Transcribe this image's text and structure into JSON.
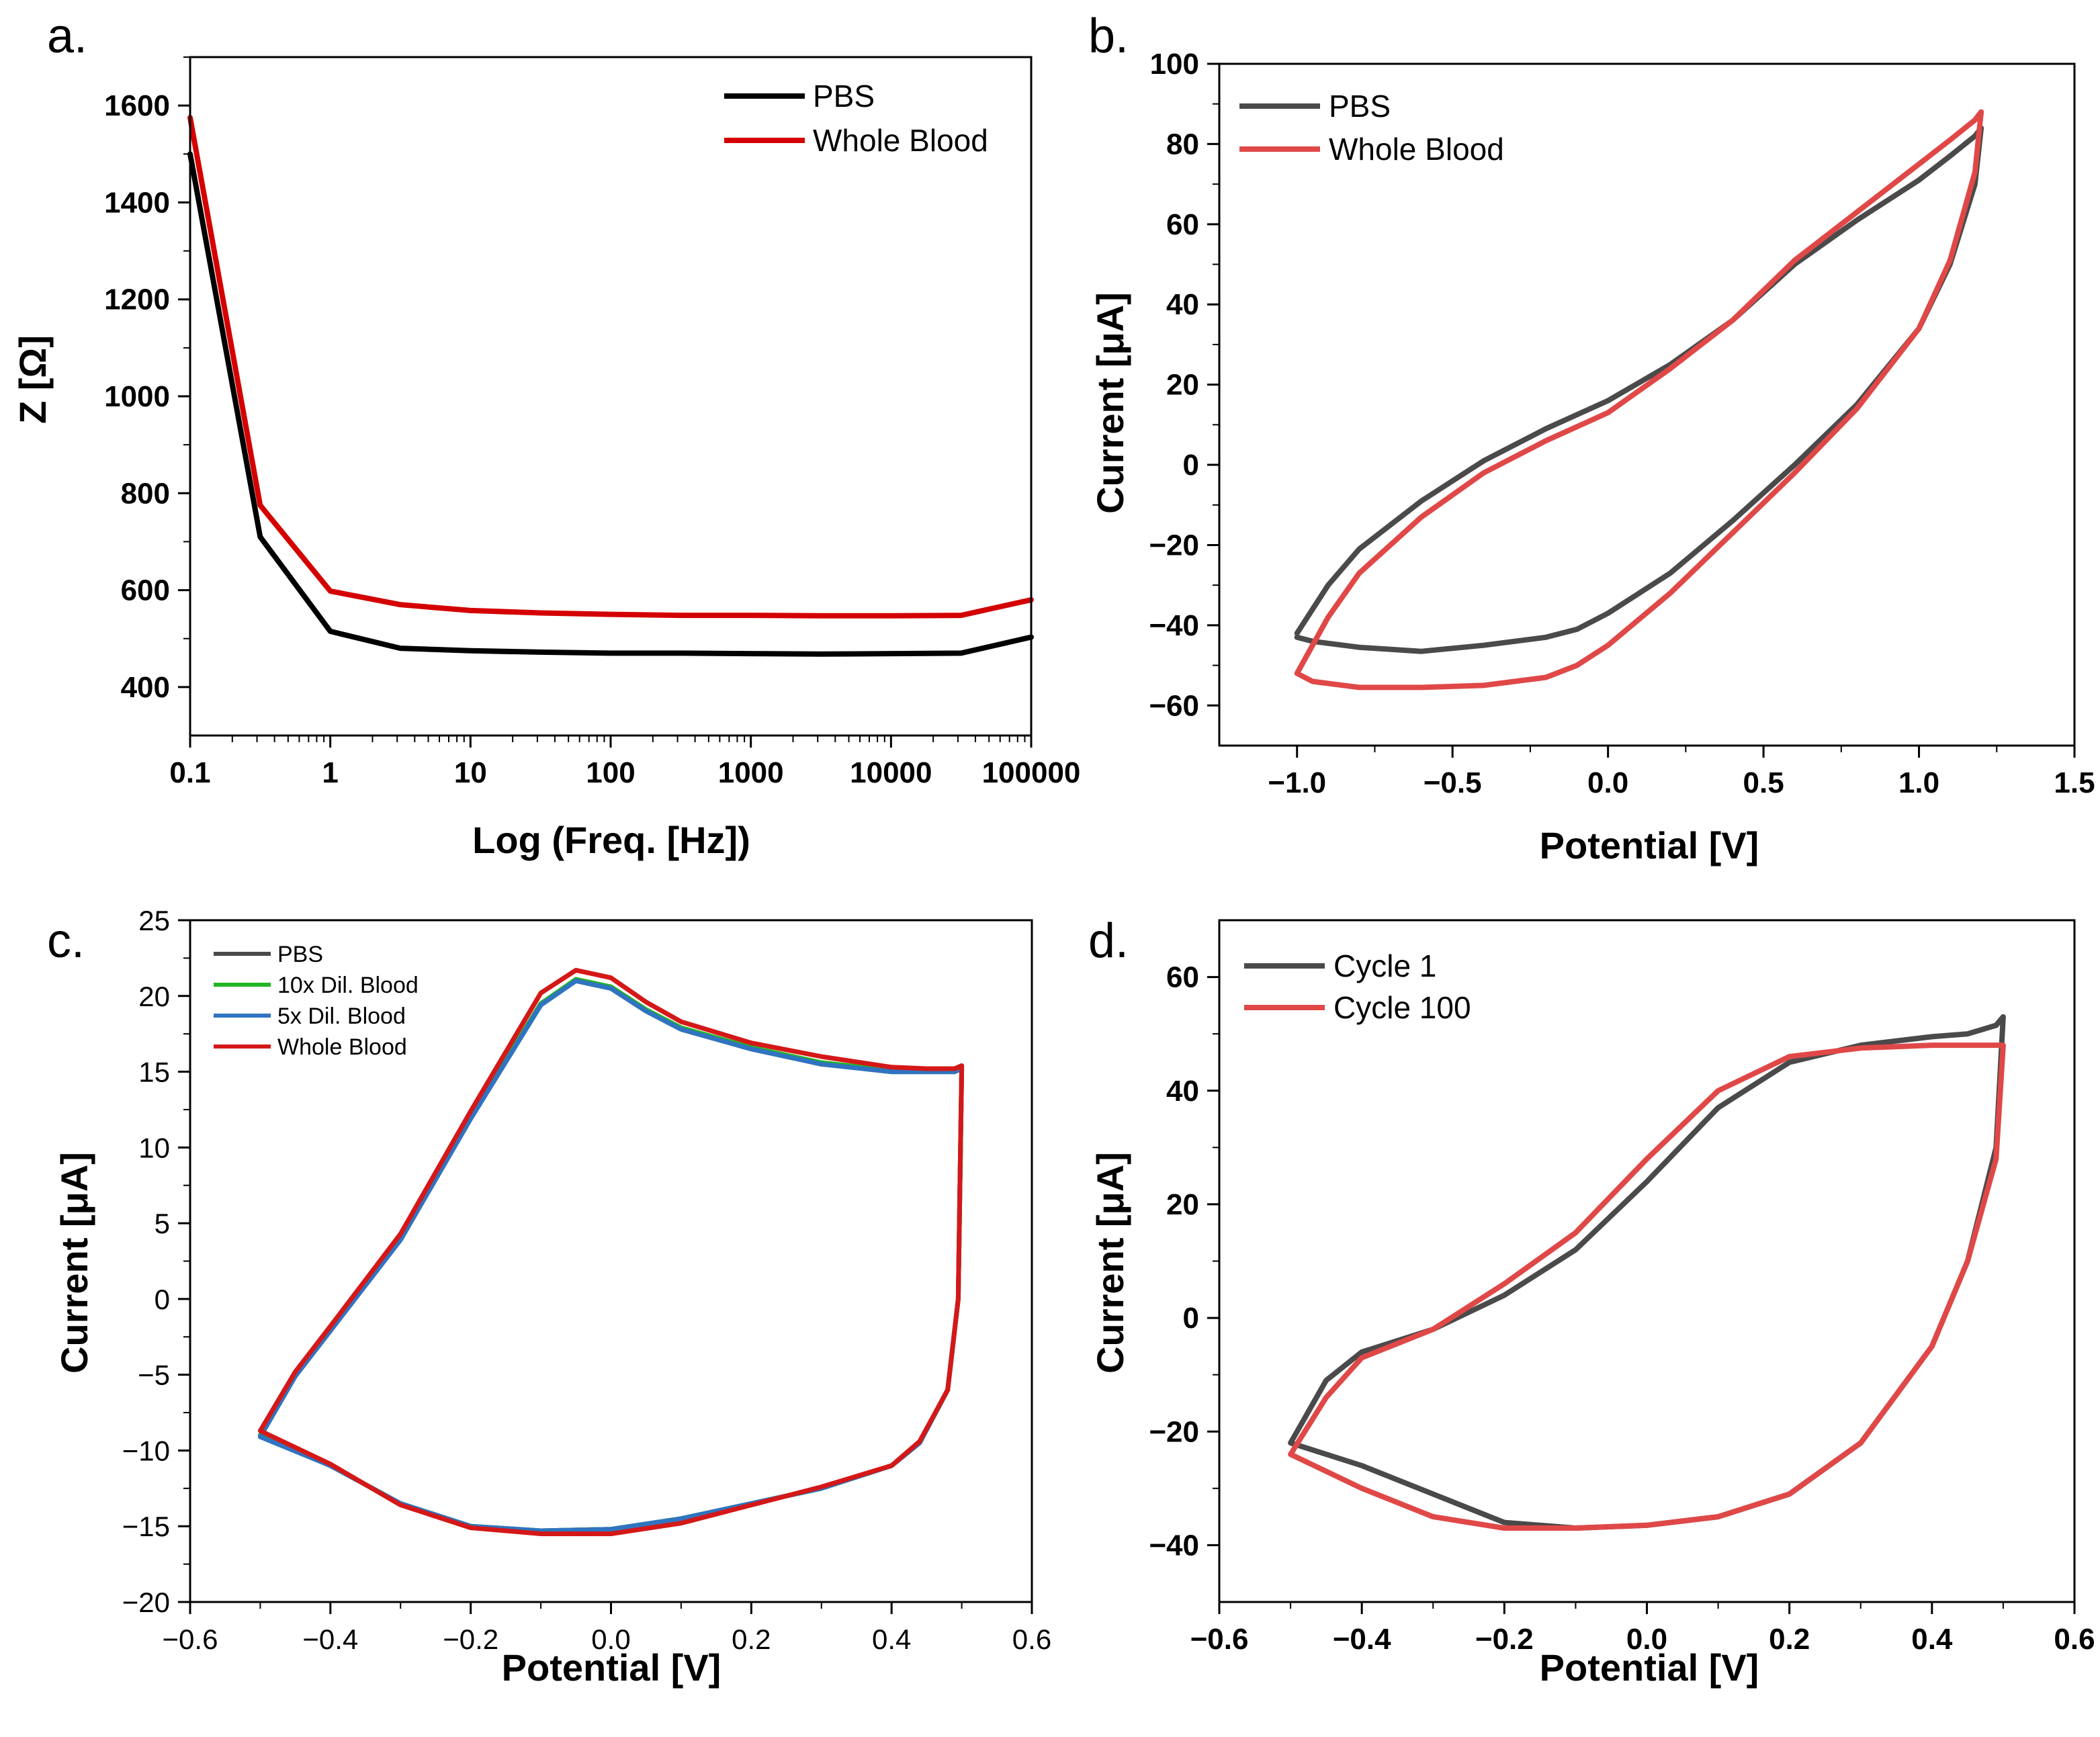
{
  "chart_data": [
    {
      "id": "a",
      "type": "line",
      "panel_label": "a.",
      "title": "",
      "xlabel": "Log (Freq. [Hz])",
      "ylabel": "Z [Ω]",
      "xscale": "log",
      "xlim": [
        0.1,
        100000
      ],
      "ylim": [
        300,
        1700
      ],
      "xticks": [
        0.1,
        1,
        10,
        100,
        1000,
        10000,
        100000
      ],
      "xtick_labels": [
        "0.1",
        "1",
        "10",
        "100",
        "1000",
        "10000",
        "100000"
      ],
      "yticks": [
        400,
        600,
        800,
        1000,
        1200,
        1400,
        1600
      ],
      "ytick_labels": [
        "400",
        "600",
        "800",
        "1000",
        "1200",
        "1400",
        "1600"
      ],
      "legend_position": "top-right",
      "series": [
        {
          "name": "PBS",
          "color": "#000000",
          "x": [
            0.1,
            0.316,
            1,
            3.16,
            10,
            31.6,
            100,
            316,
            1000,
            3162,
            10000,
            31623,
            100000
          ],
          "y": [
            1500,
            710,
            515,
            480,
            475,
            472,
            470,
            470,
            469,
            468,
            469,
            470,
            503
          ]
        },
        {
          "name": "Whole Blood",
          "color": "#d40000",
          "x": [
            0.1,
            0.316,
            1,
            3.16,
            10,
            31.6,
            100,
            316,
            1000,
            3162,
            10000,
            31623,
            100000
          ],
          "y": [
            1575,
            775,
            598,
            570,
            558,
            553,
            550,
            548,
            548,
            547,
            547,
            548,
            580
          ]
        }
      ]
    },
    {
      "id": "b",
      "type": "line",
      "panel_label": "b.",
      "title": "",
      "xlabel": "Potential [V]",
      "ylabel": "Current [μA]",
      "xlim": [
        -1.25,
        1.5
      ],
      "ylim": [
        -70,
        100
      ],
      "xticks": [
        -1.0,
        -0.5,
        0.0,
        0.5,
        1.0,
        1.5
      ],
      "xtick_labels": [
        "−1.0",
        "−0.5",
        "0.0",
        "0.5",
        "1.0",
        "1.5"
      ],
      "yticks": [
        -60,
        -40,
        -20,
        0,
        20,
        40,
        60,
        80,
        100
      ],
      "ytick_labels": [
        "−60",
        "−40",
        "−20",
        "0",
        "20",
        "40",
        "60",
        "80",
        "100"
      ],
      "legend_position": "top-left",
      "series": [
        {
          "name": "PBS",
          "color": "#4a4a4a",
          "x": [
            -1.0,
            -0.9,
            -0.8,
            -0.6,
            -0.4,
            -0.2,
            0.0,
            0.2,
            0.4,
            0.6,
            0.8,
            1.0,
            1.1,
            1.18,
            1.2,
            1.18,
            1.1,
            1.0,
            0.8,
            0.6,
            0.4,
            0.2,
            0.0,
            -0.1,
            -0.2,
            -0.4,
            -0.6,
            -0.8,
            -0.95,
            -1.0
          ],
          "y": [
            -42,
            -30,
            -21,
            -9,
            1,
            9,
            16,
            25,
            36,
            50,
            61,
            71,
            77,
            82,
            84,
            70,
            50,
            34,
            15,
            0,
            -14,
            -27,
            -37,
            -41,
            -43,
            -45,
            -46.5,
            -45.5,
            -44,
            -43
          ]
        },
        {
          "name": "Whole Blood",
          "color": "#e04848",
          "x": [
            -1.0,
            -0.9,
            -0.8,
            -0.6,
            -0.4,
            -0.2,
            0.0,
            0.2,
            0.4,
            0.6,
            0.8,
            1.0,
            1.1,
            1.18,
            1.2,
            1.18,
            1.1,
            1.0,
            0.8,
            0.6,
            0.4,
            0.2,
            0.0,
            -0.1,
            -0.2,
            -0.4,
            -0.6,
            -0.8,
            -0.95,
            -1.0
          ],
          "y": [
            -52,
            -38,
            -27,
            -13,
            -2,
            6,
            13,
            24,
            36,
            51,
            63,
            75,
            81,
            86,
            88,
            73,
            51,
            34,
            14,
            -2,
            -17,
            -32,
            -45,
            -50,
            -53,
            -55,
            -55.5,
            -55.5,
            -54,
            -52
          ]
        }
      ]
    },
    {
      "id": "c",
      "type": "line",
      "panel_label": "c.",
      "title": "",
      "xlabel": "Potential [V]",
      "ylabel": "Current [μA]",
      "xlim": [
        -0.6,
        0.6
      ],
      "ylim": [
        -20,
        25
      ],
      "xticks": [
        -0.6,
        -0.4,
        -0.2,
        0.0,
        0.2,
        0.4,
        0.6
      ],
      "xtick_labels": [
        "−0.6",
        "−0.4",
        "−0.2",
        "0.0",
        "0.2",
        "0.4",
        "0.6"
      ],
      "yticks": [
        -20,
        -15,
        -10,
        -5,
        0,
        5,
        10,
        15,
        20,
        25
      ],
      "ytick_labels": [
        "−20",
        "−15",
        "−10",
        "−5",
        "0",
        "5",
        "10",
        "15",
        "20",
        "25"
      ],
      "legend_position": "top-left",
      "series": [
        {
          "name": "PBS",
          "color": "#4a4a4a",
          "x": [
            -0.5,
            -0.45,
            -0.4,
            -0.3,
            -0.2,
            -0.1,
            -0.05,
            0.0,
            0.05,
            0.1,
            0.2,
            0.3,
            0.4,
            0.45,
            0.49,
            0.5,
            0.495,
            0.48,
            0.44,
            0.4,
            0.3,
            0.2,
            0.1,
            0.0,
            -0.1,
            -0.2,
            -0.3,
            -0.4,
            -0.5
          ],
          "y": [
            -9,
            -5,
            -2,
            4,
            12,
            19.5,
            21,
            20.5,
            19,
            17.8,
            16.5,
            15.5,
            15,
            15,
            15,
            15.2,
            0,
            -6,
            -9.5,
            -11,
            -12.5,
            -13.5,
            -14.5,
            -15.2,
            -15.3,
            -15,
            -13.5,
            -11,
            -9
          ]
        },
        {
          "name": "10x Dil. Blood",
          "color": "#22b522",
          "x": [
            -0.5,
            -0.45,
            -0.4,
            -0.3,
            -0.2,
            -0.1,
            -0.05,
            0.0,
            0.05,
            0.1,
            0.2,
            0.3,
            0.4,
            0.45,
            0.49,
            0.5,
            0.495,
            0.48,
            0.44,
            0.4,
            0.3,
            0.2,
            0.1,
            0.0,
            -0.1,
            -0.2,
            -0.3,
            -0.4,
            -0.5
          ],
          "y": [
            -9,
            -5,
            -2,
            4,
            12,
            19.5,
            21.1,
            20.6,
            19.1,
            17.9,
            16.6,
            15.6,
            15.1,
            15.1,
            15.1,
            15.3,
            0,
            -6,
            -9.5,
            -11,
            -12.5,
            -13.5,
            -14.5,
            -15.2,
            -15.3,
            -15,
            -13.5,
            -11,
            -9
          ]
        },
        {
          "name": "5x Dil. Blood",
          "color": "#2f74c0",
          "x": [
            -0.5,
            -0.45,
            -0.4,
            -0.3,
            -0.2,
            -0.1,
            -0.05,
            0.0,
            0.05,
            0.1,
            0.2,
            0.3,
            0.4,
            0.45,
            0.49,
            0.5,
            0.495,
            0.48,
            0.44,
            0.4,
            0.3,
            0.2,
            0.1,
            0.0,
            -0.1,
            -0.2,
            -0.3,
            -0.4,
            -0.5
          ],
          "y": [
            -9.1,
            -5.1,
            -2.1,
            3.9,
            11.9,
            19.4,
            21,
            20.5,
            19,
            17.8,
            16.5,
            15.5,
            15,
            15,
            15,
            15.2,
            0,
            -6,
            -9.5,
            -11,
            -12.5,
            -13.5,
            -14.5,
            -15.2,
            -15.3,
            -15,
            -13.5,
            -11,
            -9.1
          ]
        },
        {
          "name": "Whole Blood",
          "color": "#d41818",
          "x": [
            -0.5,
            -0.45,
            -0.4,
            -0.3,
            -0.2,
            -0.1,
            -0.05,
            0.0,
            0.05,
            0.1,
            0.2,
            0.3,
            0.4,
            0.45,
            0.49,
            0.5,
            0.495,
            0.48,
            0.44,
            0.4,
            0.3,
            0.2,
            0.1,
            0.0,
            -0.1,
            -0.2,
            -0.3,
            -0.4,
            -0.5
          ],
          "y": [
            -8.7,
            -4.8,
            -1.8,
            4.3,
            12.4,
            20.2,
            21.7,
            21.2,
            19.6,
            18.3,
            16.9,
            16,
            15.3,
            15.2,
            15.2,
            15.4,
            0,
            -6,
            -9.4,
            -11,
            -12.4,
            -13.6,
            -14.8,
            -15.5,
            -15.5,
            -15.1,
            -13.6,
            -10.9,
            -8.7
          ]
        }
      ]
    },
    {
      "id": "d",
      "type": "line",
      "panel_label": "d.",
      "title": "",
      "xlabel": "Potential [V]",
      "ylabel": "Current [μA]",
      "xlim": [
        -0.6,
        0.6
      ],
      "ylim": [
        -50,
        70
      ],
      "xticks": [
        -0.6,
        -0.4,
        -0.2,
        0.0,
        0.2,
        0.4,
        0.6
      ],
      "xtick_labels": [
        "−0.6",
        "−0.4",
        "−0.2",
        "0.0",
        "0.2",
        "0.4",
        "0.6"
      ],
      "yticks": [
        -40,
        -20,
        0,
        20,
        40,
        60
      ],
      "ytick_labels": [
        "−40",
        "−20",
        "0",
        "20",
        "40",
        "60"
      ],
      "legend_position": "top-left",
      "series": [
        {
          "name": "Cycle 1",
          "color": "#4a4a4a",
          "x": [
            -0.5,
            -0.45,
            -0.4,
            -0.3,
            -0.2,
            -0.1,
            0.0,
            0.1,
            0.2,
            0.3,
            0.4,
            0.45,
            0.49,
            0.5,
            0.49,
            0.45,
            0.4,
            0.3,
            0.2,
            0.1,
            0.0,
            -0.1,
            -0.2,
            -0.3,
            -0.4,
            -0.5
          ],
          "y": [
            -22,
            -11,
            -6,
            -2,
            4,
            12,
            24,
            37,
            45,
            48,
            49.5,
            50,
            51.5,
            53,
            30,
            10,
            -5,
            -22,
            -31,
            -35,
            -36.5,
            -37,
            -36,
            -31,
            -26,
            -22
          ]
        },
        {
          "name": "Cycle 100",
          "color": "#e04848",
          "x": [
            -0.5,
            -0.45,
            -0.4,
            -0.3,
            -0.2,
            -0.1,
            0.0,
            0.1,
            0.2,
            0.3,
            0.4,
            0.45,
            0.49,
            0.5,
            0.49,
            0.45,
            0.4,
            0.3,
            0.2,
            0.1,
            0.0,
            -0.1,
            -0.2,
            -0.3,
            -0.4,
            -0.5
          ],
          "y": [
            -24,
            -14,
            -7,
            -2,
            6,
            15,
            28,
            40,
            46,
            47.5,
            48,
            48,
            48,
            48,
            28,
            10,
            -5,
            -22,
            -31,
            -35,
            -36.5,
            -37,
            -37,
            -35,
            -30,
            -24
          ]
        }
      ]
    }
  ]
}
